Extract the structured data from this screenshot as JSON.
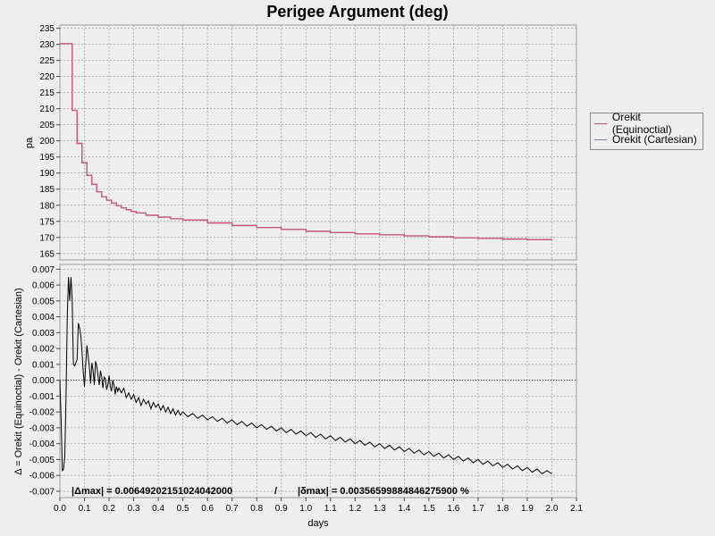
{
  "chart_data": [
    {
      "type": "line",
      "title": "Perigee Argument (deg)",
      "ylabel": "pa",
      "xlim": [
        0.0,
        2.1
      ],
      "ylim": [
        163,
        236
      ],
      "yticks": [
        165,
        170,
        175,
        180,
        185,
        190,
        195,
        200,
        205,
        210,
        215,
        220,
        225,
        230,
        235
      ],
      "legend": "right",
      "grid": true,
      "series": [
        {
          "name": "Orekit (Equinoctial)",
          "color": "#cc5577",
          "x": [
            0.0,
            0.03,
            0.05,
            0.07,
            0.09,
            0.11,
            0.13,
            0.15,
            0.17,
            0.19,
            0.21,
            0.23,
            0.25,
            0.27,
            0.29,
            0.31,
            0.35,
            0.4,
            0.45,
            0.5,
            0.6,
            0.7,
            0.8,
            0.9,
            1.0,
            1.1,
            1.2,
            1.3,
            1.4,
            1.5,
            1.6,
            1.7,
            1.8,
            1.9,
            2.0
          ],
          "y": [
            230.2,
            230.2,
            209.5,
            199.2,
            193.2,
            189.3,
            186.5,
            184.2,
            182.6,
            181.6,
            180.7,
            179.9,
            179.2,
            178.6,
            178.1,
            177.6,
            176.9,
            176.3,
            175.8,
            175.4,
            174.5,
            173.7,
            173.1,
            172.5,
            171.9,
            171.5,
            171.1,
            170.8,
            170.5,
            170.2,
            169.9,
            169.7,
            169.5,
            169.3,
            169.2
          ],
          "step": true
        },
        {
          "name": "Orekit (Cartesian)",
          "color": "#8877cc",
          "x": [
            0.0,
            0.03,
            0.05,
            0.07,
            0.09,
            0.11,
            0.13,
            0.15,
            0.17,
            0.19,
            0.21,
            0.23,
            0.25,
            0.27,
            0.29,
            0.31,
            0.35,
            0.4,
            0.45,
            0.5,
            0.6,
            0.7,
            0.8,
            0.9,
            1.0,
            1.1,
            1.2,
            1.3,
            1.4,
            1.5,
            1.6,
            1.7,
            1.8,
            1.9,
            2.0
          ],
          "y": [
            230.2,
            230.2,
            209.5,
            199.2,
            193.2,
            189.3,
            186.5,
            184.2,
            182.6,
            181.6,
            180.7,
            179.9,
            179.2,
            178.6,
            178.1,
            177.6,
            176.9,
            176.3,
            175.8,
            175.4,
            174.5,
            173.7,
            173.1,
            172.5,
            171.9,
            171.5,
            171.1,
            170.8,
            170.5,
            170.2,
            169.9,
            169.7,
            169.5,
            169.3,
            169.2
          ],
          "step": true
        }
      ]
    },
    {
      "type": "line",
      "xlabel": "days",
      "ylabel": "Δ = Orekit (Equinoctial) - Orekit (Cartesian)",
      "xlim": [
        0.0,
        2.1
      ],
      "ylim": [
        -0.0074,
        0.0073
      ],
      "xticks": [
        0.0,
        0.1,
        0.2,
        0.3,
        0.4,
        0.5,
        0.6,
        0.7,
        0.8,
        0.9,
        1.0,
        1.1,
        1.2,
        1.3,
        1.4,
        1.5,
        1.6,
        1.7,
        1.8,
        1.9,
        2.0,
        2.1
      ],
      "yticks": [
        0.007,
        0.006,
        0.005,
        0.004,
        0.003,
        0.002,
        0.001,
        0.0,
        -0.001,
        -0.002,
        -0.003,
        -0.004,
        -0.005,
        -0.006,
        -0.007
      ],
      "ytick_labels": [
        "0.007",
        "0.006",
        "0.005",
        "0.004",
        "0.003",
        "0.002",
        "0.001",
        "0.000",
        "-0.001",
        "-0.002",
        "-0.003",
        "-0.004",
        "-0.005",
        "-0.006",
        "-0.007"
      ],
      "grid": true,
      "series": [
        {
          "color": "#000000",
          "x": [
            0.0,
            0.005,
            0.01,
            0.015,
            0.02,
            0.025,
            0.03,
            0.035,
            0.04,
            0.045,
            0.05,
            0.055,
            0.06,
            0.065,
            0.07,
            0.075,
            0.08,
            0.085,
            0.09,
            0.095,
            0.1,
            0.105,
            0.11,
            0.115,
            0.12,
            0.125,
            0.13,
            0.135,
            0.14,
            0.145,
            0.15,
            0.155,
            0.16,
            0.165,
            0.17,
            0.175,
            0.18,
            0.185,
            0.19,
            0.195,
            0.2,
            0.205,
            0.21,
            0.215,
            0.22,
            0.225,
            0.23,
            0.235,
            0.24,
            0.25,
            0.26,
            0.27,
            0.28,
            0.29,
            0.3,
            0.31,
            0.32,
            0.33,
            0.34,
            0.35,
            0.36,
            0.37,
            0.38,
            0.39,
            0.4,
            0.41,
            0.42,
            0.43,
            0.44,
            0.45,
            0.46,
            0.47,
            0.48,
            0.49,
            0.5,
            0.52,
            0.54,
            0.56,
            0.58,
            0.6,
            0.62,
            0.64,
            0.66,
            0.68,
            0.7,
            0.72,
            0.74,
            0.76,
            0.78,
            0.8,
            0.82,
            0.84,
            0.86,
            0.88,
            0.9,
            0.92,
            0.94,
            0.96,
            0.98,
            1.0,
            1.02,
            1.04,
            1.06,
            1.08,
            1.1,
            1.12,
            1.14,
            1.16,
            1.18,
            1.2,
            1.22,
            1.24,
            1.26,
            1.28,
            1.3,
            1.32,
            1.34,
            1.36,
            1.38,
            1.4,
            1.42,
            1.44,
            1.46,
            1.48,
            1.5,
            1.52,
            1.54,
            1.56,
            1.58,
            1.6,
            1.62,
            1.64,
            1.66,
            1.68,
            1.7,
            1.72,
            1.74,
            1.76,
            1.78,
            1.8,
            1.82,
            1.84,
            1.86,
            1.88,
            1.9,
            1.92,
            1.94,
            1.96,
            1.98,
            2.0
          ],
          "y": [
            0.0,
            -0.0025,
            -0.0057,
            -0.0056,
            -0.0048,
            -0.001,
            0.004,
            0.0065,
            0.005,
            0.0065,
            0.0051,
            0.001,
            0.0009,
            0.0011,
            0.0013,
            0.0036,
            0.0033,
            0.0028,
            0.0018,
            0.0005,
            -0.0004,
            0.001,
            0.0022,
            0.0015,
            0.0008,
            -0.0002,
            0.0011,
            0.0006,
            -0.0003,
            0.0012,
            0.0009,
            0.0003,
            -0.0003,
            0.0006,
            0.0002,
            -0.0005,
            0.0002,
            0.0001,
            -0.0006,
            -0.0003,
            0.0003,
            -0.0004,
            -0.0007,
            0.0,
            -0.0003,
            -0.0009,
            -0.0004,
            -0.0007,
            -0.0005,
            -0.0008,
            -0.0005,
            -0.0011,
            -0.0008,
            -0.0012,
            -0.0009,
            -0.0014,
            -0.0011,
            -0.0016,
            -0.0012,
            -0.0015,
            -0.0013,
            -0.0018,
            -0.0014,
            -0.0017,
            -0.0015,
            -0.0019,
            -0.0016,
            -0.002,
            -0.0017,
            -0.0021,
            -0.0018,
            -0.0022,
            -0.0019,
            -0.0022,
            -0.002,
            -0.0023,
            -0.0021,
            -0.0024,
            -0.0022,
            -0.0025,
            -0.0023,
            -0.0026,
            -0.0024,
            -0.0027,
            -0.0025,
            -0.0028,
            -0.0026,
            -0.0029,
            -0.0027,
            -0.003,
            -0.0028,
            -0.0031,
            -0.0029,
            -0.0032,
            -0.003,
            -0.0033,
            -0.0031,
            -0.0034,
            -0.0032,
            -0.0035,
            -0.0033,
            -0.0036,
            -0.0034,
            -0.0037,
            -0.0035,
            -0.0038,
            -0.0036,
            -0.0039,
            -0.0037,
            -0.004,
            -0.0038,
            -0.0041,
            -0.0039,
            -0.0042,
            -0.004,
            -0.0043,
            -0.0041,
            -0.0044,
            -0.0042,
            -0.0045,
            -0.0043,
            -0.0046,
            -0.0044,
            -0.0047,
            -0.0045,
            -0.0048,
            -0.0046,
            -0.0049,
            -0.0047,
            -0.005,
            -0.0048,
            -0.0051,
            -0.0049,
            -0.0052,
            -0.005,
            -0.0053,
            -0.0051,
            -0.0054,
            -0.0052,
            -0.0055,
            -0.0053,
            -0.0056,
            -0.0054,
            -0.0057,
            -0.0055,
            -0.0058,
            -0.0056,
            -0.0059,
            -0.0057,
            -0.0059
          ]
        }
      ],
      "annotations": {
        "delta_max": "|Δmax| = 0.00649202151024042000",
        "separator": "/",
        "rel_max": "|δmax| = 0.00356599884846275900 %"
      }
    }
  ]
}
